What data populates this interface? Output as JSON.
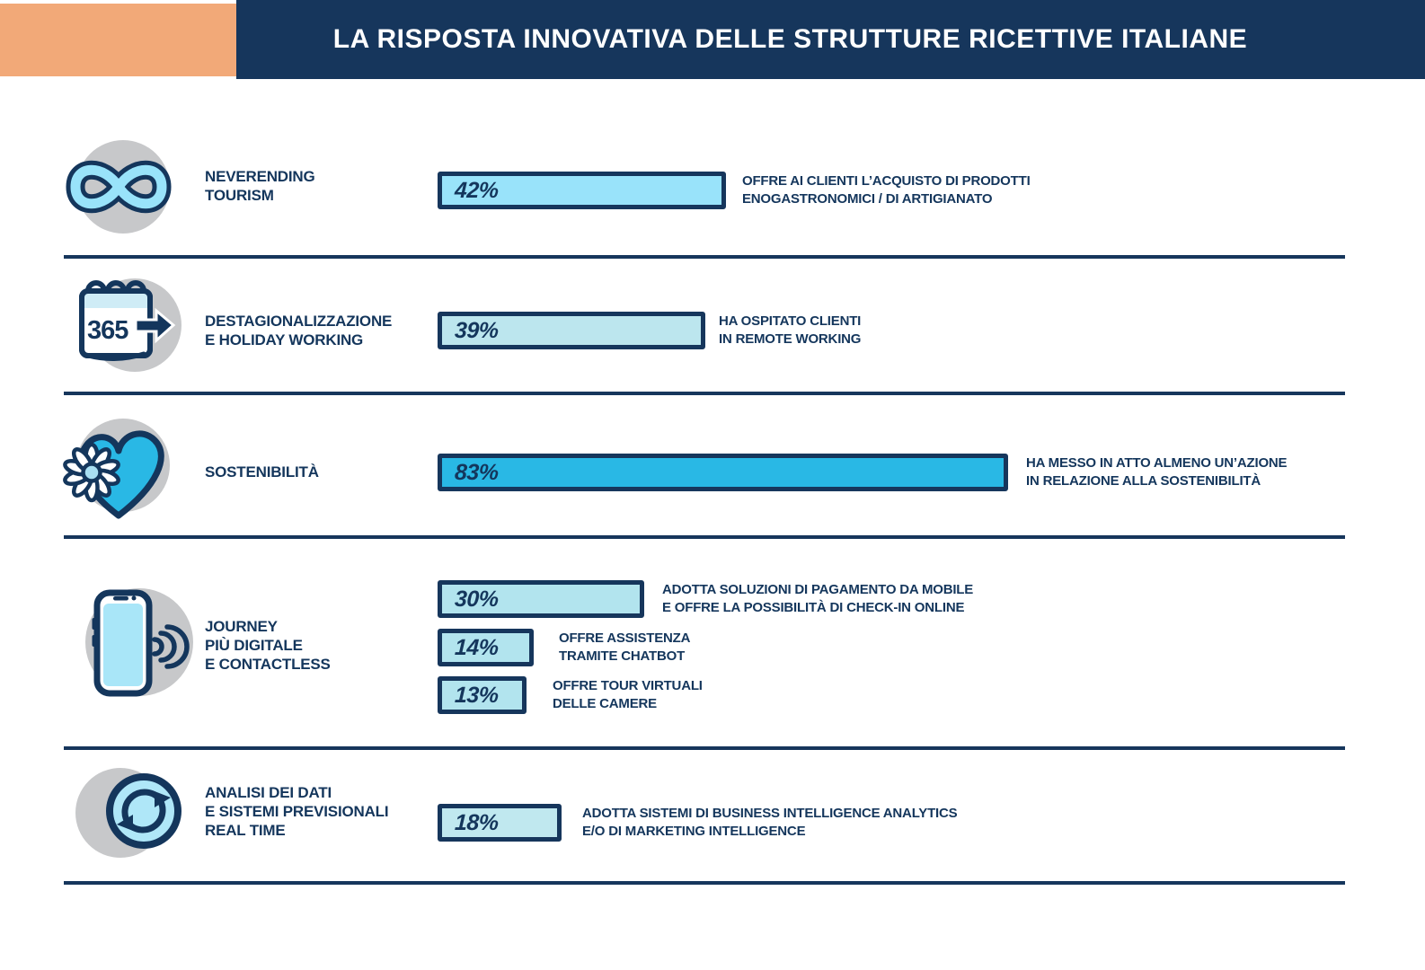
{
  "header": {
    "title": "LA RISPOSTA INNOVATIVA DELLE STRUTTURE RICETTIVE ITALIANE"
  },
  "colors": {
    "navy": "#16365C",
    "orange_accent": "#F2A978",
    "gray_circle": "#C7C8CA",
    "bright_blue": "#29B8E5",
    "light_blue": "#99E3FA",
    "pale_blue": "#B2E4EE"
  },
  "rows": [
    {
      "icon": "infinity-icon",
      "label": "NEVERENDING\nTOURISM",
      "bars": [
        {
          "value": 42,
          "value_label": "42%",
          "fill": "#99E3FA",
          "description": "OFFRE AI CLIENTI L’ACQUISTO DI PRODOTTI\nENOGASTRONOMICI / DI ARTIGIANATO"
        }
      ]
    },
    {
      "icon": "calendar-365-icon",
      "icon_text": "365",
      "label": "DESTAGIONALIZZAZIONE\nE HOLIDAY WORKING",
      "bars": [
        {
          "value": 39,
          "value_label": "39%",
          "fill": "#BCE6EE",
          "description": "HA OSPITATO CLIENTI\nIN REMOTE WORKING"
        }
      ]
    },
    {
      "icon": "heart-flower-icon",
      "label": "SOSTENIBILITÀ",
      "bars": [
        {
          "value": 83,
          "value_label": "83%",
          "fill": "#29B8E5",
          "description": "HA MESSO IN ATTO ALMENO UN’AZIONE\nIN RELAZIONE ALLA SOSTENIBILITÀ"
        }
      ]
    },
    {
      "icon": "smartphone-contactless-icon",
      "label": "JOURNEY\nPIÙ DIGITALE\nE CONTACTLESS",
      "bars": [
        {
          "value": 30,
          "value_label": "30%",
          "fill": "#B2E4EE",
          "description": "ADOTTA SOLUZIONI DI PAGAMENTO DA MOBILE\nE OFFRE LA POSSIBILITÀ DI CHECK-IN ONLINE"
        },
        {
          "value": 14,
          "value_label": "14%",
          "fill": "#B2E4EE",
          "description": "OFFRE ASSISTENZA\nTRAMITE CHATBOT"
        },
        {
          "value": 13,
          "value_label": "13%",
          "fill": "#B2E4EE",
          "description": "OFFRE TOUR VIRTUALI\nDELLE CAMERE"
        }
      ]
    },
    {
      "icon": "sync-arrows-icon",
      "label": "ANALISI DEI DATI\nE SISTEMI PREVISIONALI\nREAL TIME",
      "bars": [
        {
          "value": 18,
          "value_label": "18%",
          "fill": "#C0E8EF",
          "description": "ADOTTA SISTEMI DI BUSINESS INTELLIGENCE ANALYTICS\nE/O DI MARKETING INTELLIGENCE"
        }
      ]
    }
  ],
  "chart_data": {
    "type": "bar",
    "orientation": "horizontal",
    "title": "LA RISPOSTA INNOVATIVA DELLE STRUTTURE RICETTIVE ITALIANE",
    "unit": "%",
    "xlim": [
      0,
      100
    ],
    "groups": [
      {
        "category": "NEVERENDING TOURISM",
        "values": [
          42
        ],
        "labels": [
          "OFFRE AI CLIENTI L’ACQUISTO DI PRODOTTI ENOGASTRONOMICI / DI ARTIGIANATO"
        ]
      },
      {
        "category": "DESTAGIONALIZZAZIONE E HOLIDAY WORKING",
        "values": [
          39
        ],
        "labels": [
          "HA OSPITATO CLIENTI IN REMOTE WORKING"
        ]
      },
      {
        "category": "SOSTENIBILITÀ",
        "values": [
          83
        ],
        "labels": [
          "HA MESSO IN ATTO ALMENO UN’AZIONE IN RELAZIONE ALLA SOSTENIBILITÀ"
        ]
      },
      {
        "category": "JOURNEY PIÙ DIGITALE E CONTACTLESS",
        "values": [
          30,
          14,
          13
        ],
        "labels": [
          "ADOTTA SOLUZIONI DI PAGAMENTO DA MOBILE E OFFRE LA POSSIBILITÀ DI CHECK-IN ONLINE",
          "OFFRE ASSISTENZA TRAMITE CHATBOT",
          "OFFRE TOUR VIRTUALI DELLE CAMERE"
        ]
      },
      {
        "category": "ANALISI DEI DATI E SISTEMI PREVISIONALI REAL TIME",
        "values": [
          18
        ],
        "labels": [
          "ADOTTA SISTEMI DI BUSINESS INTELLIGENCE ANALYTICS E/O DI MARKETING INTELLIGENCE"
        ]
      }
    ]
  }
}
